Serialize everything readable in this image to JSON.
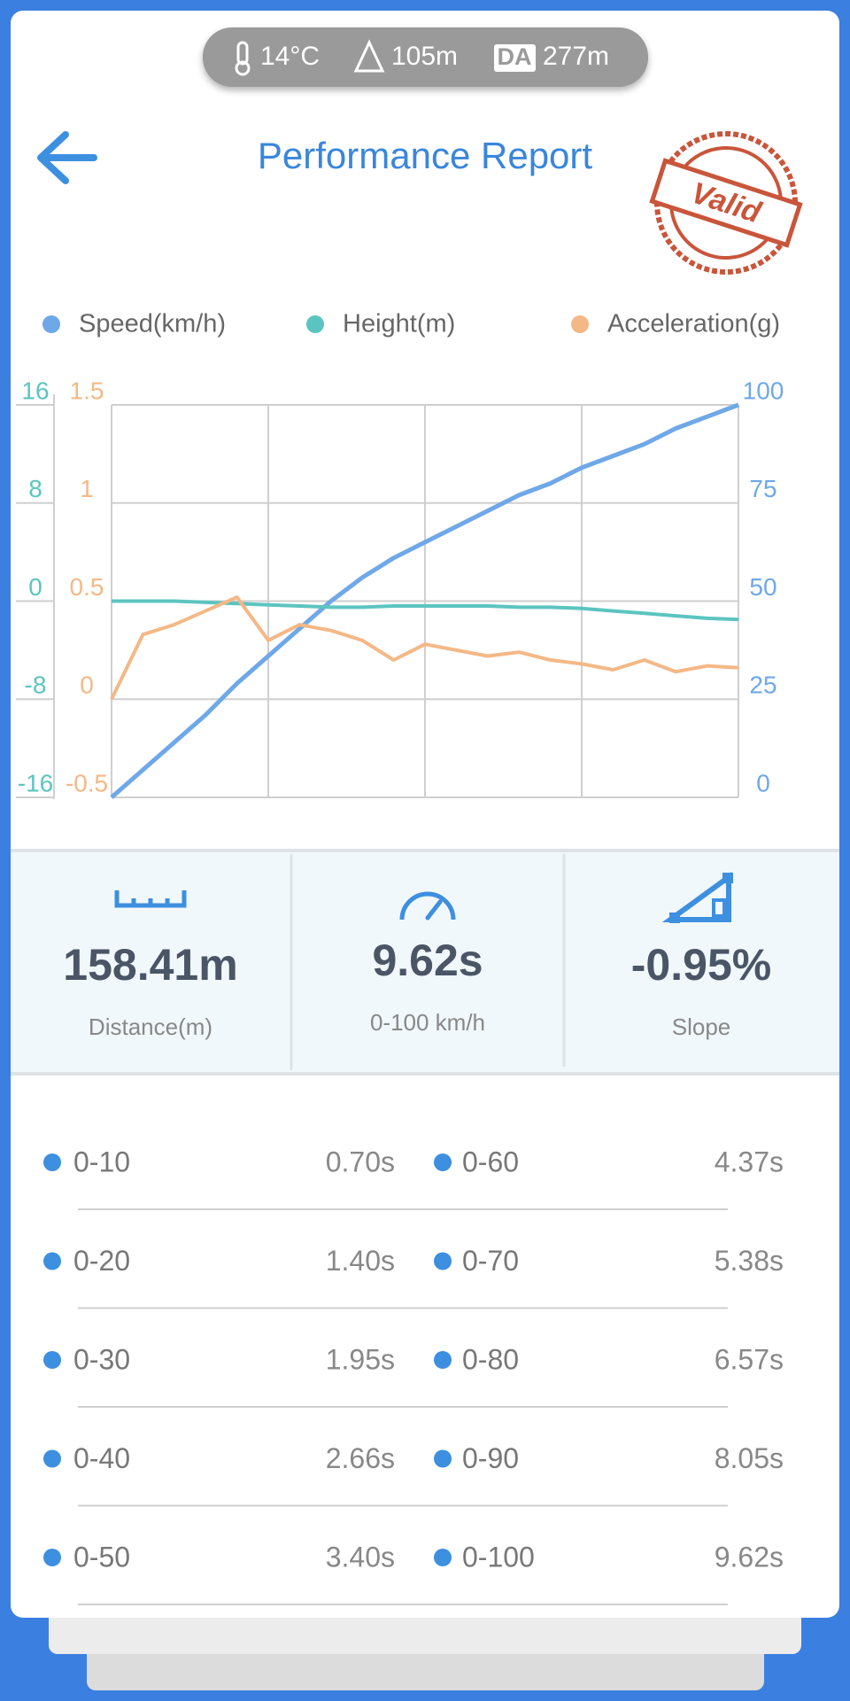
{
  "status": {
    "temperature": "14°C",
    "altitude": "105m",
    "da_label": "DA",
    "density_altitude": "277m"
  },
  "header": {
    "title": "Performance Report",
    "stamp": "Valid"
  },
  "chart_data": {
    "type": "line",
    "series": [
      {
        "name": "Speed(km/h)",
        "color": "#6fa8e8",
        "axis": "y",
        "values": [
          0,
          7,
          14,
          21,
          29,
          36,
          43,
          50,
          56,
          61,
          65,
          69,
          73,
          77,
          80,
          84,
          87,
          90,
          94,
          97,
          100
        ]
      },
      {
        "name": "Height(m)",
        "color": "#5cc4c0",
        "axis": "y2",
        "values": [
          0,
          0,
          0,
          -0.1,
          -0.2,
          -0.3,
          -0.4,
          -0.5,
          -0.5,
          -0.4,
          -0.4,
          -0.4,
          -0.4,
          -0.5,
          -0.5,
          -0.6,
          -0.8,
          -1,
          -1.2,
          -1.4,
          -1.5
        ]
      },
      {
        "name": "Acceleration(g)",
        "color": "#f4b886",
        "axis": "y3",
        "values": [
          0,
          0.33,
          0.38,
          0.45,
          0.52,
          0.3,
          0.38,
          0.35,
          0.3,
          0.2,
          0.28,
          0.25,
          0.22,
          0.24,
          0.2,
          0.18,
          0.15,
          0.2,
          0.14,
          0.17,
          0.16
        ]
      }
    ],
    "ylim": [
      0,
      100
    ],
    "yticks": [
      0,
      25,
      50,
      75,
      100
    ],
    "y2lim": [
      -16,
      16
    ],
    "y2ticks": [
      -16,
      -8,
      0,
      8,
      16
    ],
    "y3lim": [
      -0.5,
      1.5
    ],
    "y3ticks": [
      -0.5,
      0,
      0.5,
      1,
      1.5
    ],
    "grid": true
  },
  "stats": [
    {
      "value": "158.41m",
      "label": "Distance(m)"
    },
    {
      "value": "9.62s",
      "label": "0-100 km/h"
    },
    {
      "value": "-0.95%",
      "label": "Slope"
    }
  ],
  "splits": [
    {
      "label": "0-10",
      "time": "0.70s"
    },
    {
      "label": "0-60",
      "time": "4.37s"
    },
    {
      "label": "0-20",
      "time": "1.40s"
    },
    {
      "label": "0-70",
      "time": "5.38s"
    },
    {
      "label": "0-30",
      "time": "1.95s"
    },
    {
      "label": "0-80",
      "time": "6.57s"
    },
    {
      "label": "0-40",
      "time": "2.66s"
    },
    {
      "label": "0-90",
      "time": "8.05s"
    },
    {
      "label": "0-50",
      "time": "3.40s"
    },
    {
      "label": "0-100",
      "time": "9.62s"
    }
  ]
}
